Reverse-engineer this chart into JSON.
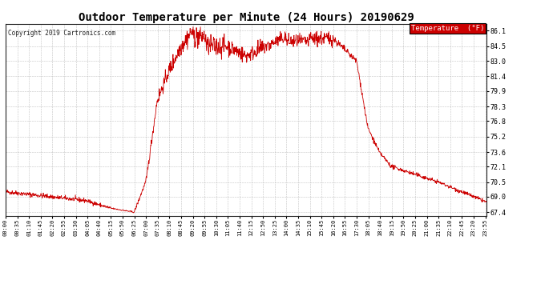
{
  "title": "Outdoor Temperature per Minute (24 Hours) 20190629",
  "copyright_text": "Copyright 2019 Cartronics.com",
  "legend_label": "Temperature  (°F)",
  "legend_bg": "#cc0000",
  "legend_fg": "#ffffff",
  "line_color": "#cc0000",
  "background_color": "#ffffff",
  "grid_color": "#999999",
  "title_fontsize": 10,
  "yticks": [
    67.4,
    69.0,
    70.5,
    72.1,
    73.6,
    75.2,
    76.8,
    78.3,
    79.9,
    81.4,
    83.0,
    84.5,
    86.1
  ],
  "ylim": [
    67.0,
    86.8
  ],
  "total_minutes": 1440,
  "xtick_interval": 35,
  "xtick_labels": [
    "00:00",
    "00:35",
    "01:10",
    "01:45",
    "02:20",
    "02:55",
    "03:30",
    "04:05",
    "04:40",
    "05:15",
    "05:50",
    "06:25",
    "07:00",
    "07:35",
    "08:10",
    "08:45",
    "09:20",
    "09:55",
    "10:30",
    "11:05",
    "11:40",
    "12:15",
    "12:50",
    "13:25",
    "14:00",
    "14:35",
    "15:10",
    "15:45",
    "16:20",
    "16:55",
    "17:30",
    "18:05",
    "18:40",
    "19:15",
    "19:50",
    "20:25",
    "21:00",
    "21:35",
    "22:10",
    "22:45",
    "23:20",
    "23:55"
  ]
}
